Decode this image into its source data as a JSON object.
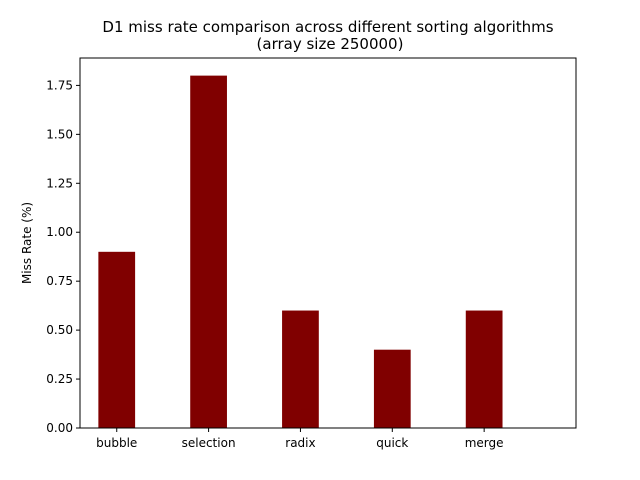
{
  "chart_data": {
    "type": "bar",
    "title_line1": "D1  miss rate comparison across different sorting algorithms",
    "title_line2": "(array size 250000)",
    "xlabel": "",
    "ylabel": "Miss Rate (%)",
    "categories": [
      "bubble",
      "selection",
      "radix",
      "quick",
      "merge"
    ],
    "values": [
      0.9,
      1.8,
      0.6,
      0.4,
      0.6
    ],
    "ylim": [
      0,
      1.89
    ],
    "yticks": [
      0.0,
      0.25,
      0.5,
      0.75,
      1.0,
      1.25,
      1.5,
      1.75
    ],
    "ytick_labels": [
      "0.00",
      "0.25",
      "0.50",
      "0.75",
      "1.00",
      "1.25",
      "1.50",
      "1.75"
    ],
    "bar_color": "#800000",
    "grid": false,
    "legend": "none"
  }
}
